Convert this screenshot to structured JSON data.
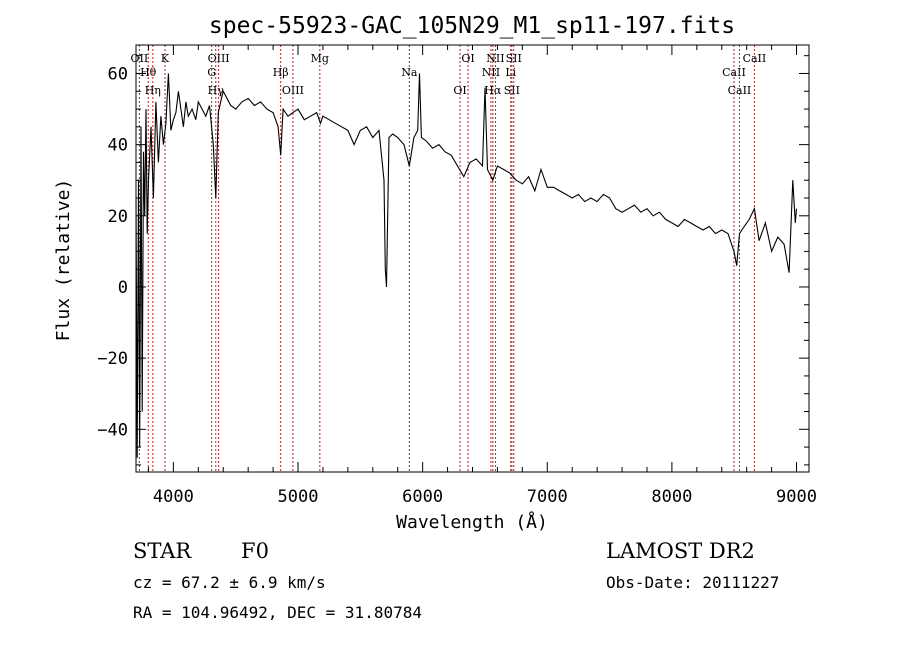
{
  "chart_data": {
    "type": "line",
    "title": "spec-55923-GAC_105N29_M1_sp11-197.fits",
    "xlabel": "Wavelength (Å)",
    "ylabel": "Flux (relative)",
    "xlim": [
      3700,
      9100
    ],
    "ylim": [
      -52,
      68
    ],
    "x_ticks": [
      4000,
      5000,
      6000,
      7000,
      8000,
      9000
    ],
    "y_ticks": [
      -40,
      -20,
      0,
      20,
      40,
      60
    ],
    "grid": false,
    "series": [
      {
        "x": [
          3700,
          3710,
          3720,
          3730,
          3740,
          3750,
          3760,
          3770,
          3780,
          3790,
          3800,
          3820,
          3840,
          3860,
          3880,
          3900,
          3920,
          3940,
          3960,
          3980,
          4000,
          4020,
          4040,
          4060,
          4080,
          4100,
          4120,
          4150,
          4180,
          4200,
          4230,
          4260,
          4290,
          4320,
          4340,
          4360,
          4380,
          4400,
          4430,
          4460,
          4500,
          4550,
          4600,
          4650,
          4700,
          4750,
          4800,
          4840,
          4861,
          4880,
          4920,
          4960,
          5000,
          5050,
          5100,
          5150,
          5180,
          5200,
          5250,
          5300,
          5350,
          5400,
          5450,
          5500,
          5550,
          5600,
          5650,
          5690,
          5700,
          5710,
          5730,
          5760,
          5800,
          5850,
          5893,
          5930,
          5960,
          5975,
          5990,
          6030,
          6080,
          6130,
          6180,
          6230,
          6280,
          6330,
          6380,
          6430,
          6480,
          6500,
          6520,
          6563,
          6600,
          6650,
          6700,
          6750,
          6800,
          6850,
          6900,
          6950,
          7000,
          7050,
          7100,
          7150,
          7200,
          7250,
          7300,
          7350,
          7400,
          7450,
          7500,
          7550,
          7600,
          7650,
          7700,
          7750,
          7800,
          7850,
          7900,
          7950,
          8000,
          8050,
          8100,
          8150,
          8200,
          8250,
          8300,
          8350,
          8400,
          8450,
          8498,
          8520,
          8542,
          8580,
          8620,
          8662,
          8700,
          8750,
          8800,
          8850,
          8900,
          8940,
          8970,
          8990,
          9000
        ],
        "y": [
          25,
          -48,
          30,
          -45,
          45,
          -35,
          38,
          20,
          50,
          15,
          30,
          45,
          25,
          52,
          35,
          48,
          40,
          46,
          60,
          44,
          47,
          49,
          55,
          50,
          45,
          52,
          48,
          50,
          47,
          52,
          50,
          48,
          51,
          40,
          25,
          49,
          52,
          55,
          53,
          51,
          50,
          52,
          53,
          51,
          52,
          50,
          49,
          45,
          37,
          50,
          48,
          49,
          50,
          47,
          48,
          49,
          46,
          48,
          47,
          46,
          45,
          44,
          40,
          44,
          45,
          42,
          44,
          30,
          5,
          0,
          42,
          43,
          42,
          40,
          34,
          42,
          44,
          60,
          42,
          41,
          39,
          40,
          38,
          37,
          34,
          31,
          35,
          36,
          34,
          56,
          33,
          30,
          34,
          33,
          32,
          30,
          29,
          31,
          27,
          33,
          28,
          28,
          27,
          26,
          25,
          26,
          24,
          25,
          24,
          26,
          25,
          22,
          21,
          22,
          23,
          21,
          22,
          20,
          21,
          19,
          18,
          17,
          19,
          18,
          17,
          16,
          17,
          15,
          16,
          15,
          10,
          6,
          15,
          17,
          19,
          22,
          13,
          18,
          10,
          14,
          12,
          4,
          30,
          18,
          22
        ]
      }
    ],
    "lines": [
      {
        "x": 3727,
        "labels": [
          "OII"
        ]
      },
      {
        "x": 3798,
        "labels": [
          "Hθ"
        ]
      },
      {
        "x": 3835,
        "labels": [
          "Hη"
        ]
      },
      {
        "x": 3933,
        "labels": [
          "K"
        ]
      },
      {
        "x": 4307,
        "labels": [
          "G"
        ]
      },
      {
        "x": 4340,
        "labels": [
          "Hγ"
        ]
      },
      {
        "x": 4363,
        "labels": [
          "OIII"
        ]
      },
      {
        "x": 4861,
        "labels": [
          "Hβ"
        ]
      },
      {
        "x": 4959,
        "labels": [
          "OIII"
        ]
      },
      {
        "x": 5175,
        "labels": [
          "Mg"
        ]
      },
      {
        "x": 5893,
        "labels": [
          "Na"
        ]
      },
      {
        "x": 6300,
        "labels": [
          "OI"
        ]
      },
      {
        "x": 6364,
        "labels": [
          "OI"
        ]
      },
      {
        "x": 6548,
        "labels": [
          "NII"
        ]
      },
      {
        "x": 6563,
        "labels": [
          "Hα"
        ]
      },
      {
        "x": 6584,
        "labels": [
          "NII"
        ]
      },
      {
        "x": 6707,
        "labels": [
          "Li"
        ]
      },
      {
        "x": 6716,
        "labels": [
          "SII"
        ]
      },
      {
        "x": 6731,
        "labels": [
          "SII"
        ]
      },
      {
        "x": 8498,
        "labels": [
          "CaII"
        ]
      },
      {
        "x": 8542,
        "labels": [
          "CaII"
        ]
      },
      {
        "x": 8662,
        "labels": [
          "CaII"
        ]
      }
    ],
    "line_color": "#b22222"
  },
  "info": {
    "object_class": "STAR",
    "subclass": "F0",
    "survey": "LAMOST DR2",
    "cz": "cz = 67.2 ± 6.9 km/s",
    "obs_date": "Obs-Date: 20111227",
    "coords": "RA = 104.96492, DEC =  31.80784"
  }
}
